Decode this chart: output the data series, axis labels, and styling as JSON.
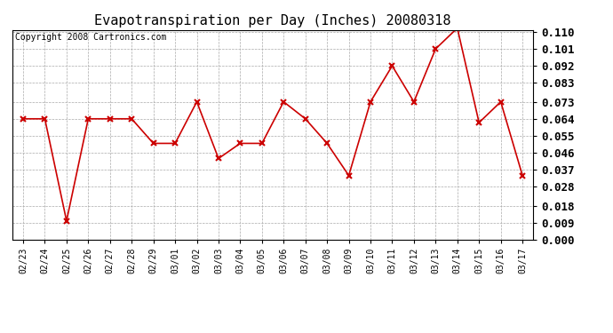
{
  "title": "Evapotranspiration per Day (Inches) 20080318",
  "copyright": "Copyright 2008 Cartronics.com",
  "dates": [
    "02/23",
    "02/24",
    "02/25",
    "02/26",
    "02/27",
    "02/28",
    "02/29",
    "03/01",
    "03/02",
    "03/03",
    "03/04",
    "03/05",
    "03/06",
    "03/07",
    "03/08",
    "03/09",
    "03/10",
    "03/11",
    "03/12",
    "03/13",
    "03/14",
    "03/15",
    "03/16",
    "03/17"
  ],
  "values": [
    0.064,
    0.064,
    0.01,
    0.064,
    0.064,
    0.064,
    0.051,
    0.051,
    0.073,
    0.043,
    0.051,
    0.051,
    0.073,
    0.064,
    0.051,
    0.034,
    0.073,
    0.092,
    0.073,
    0.101,
    0.112,
    0.062,
    0.073,
    0.034
  ],
  "line_color": "#cc0000",
  "marker": "x",
  "marker_color": "#cc0000",
  "bg_color": "#ffffff",
  "grid_color": "#aaaaaa",
  "ylim": [
    0.0,
    0.11
  ],
  "yticks": [
    0.0,
    0.009,
    0.018,
    0.028,
    0.037,
    0.046,
    0.055,
    0.064,
    0.073,
    0.083,
    0.092,
    0.101,
    0.11
  ],
  "title_fontsize": 11,
  "copyright_fontsize": 7,
  "ytick_fontsize": 9,
  "xtick_fontsize": 7
}
